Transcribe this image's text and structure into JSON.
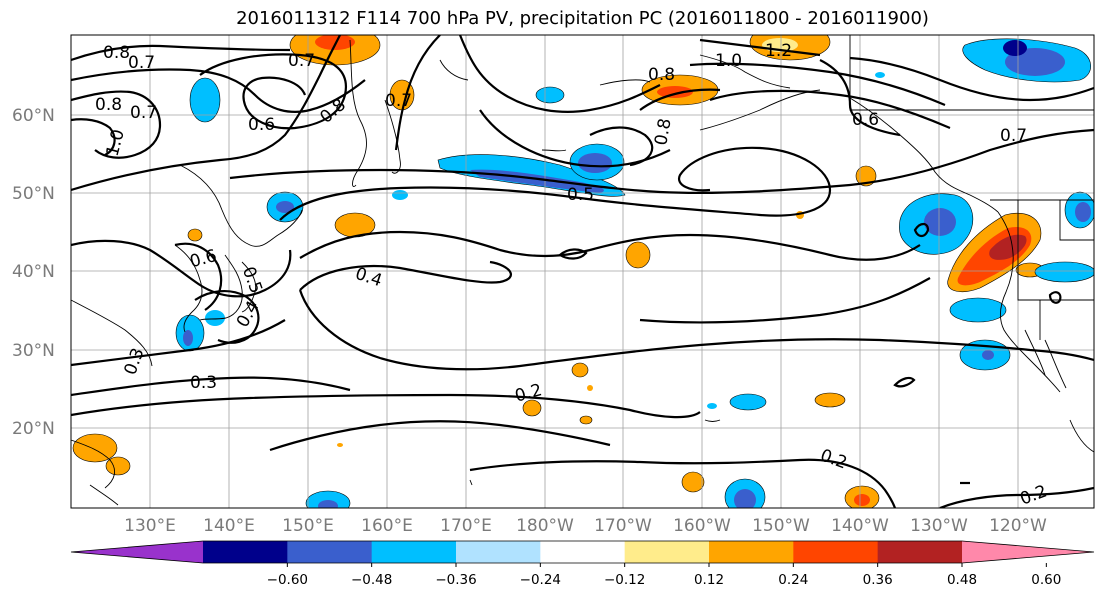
{
  "title": "2016011312 F114 700 hPa PV, precipitation PC (2016011800 - 2016011900)",
  "lat_labels": [
    "60°N",
    "50°N",
    "40°N",
    "30°N",
    "20°N"
  ],
  "lon_labels": [
    "130°E",
    "140°E",
    "150°E",
    "160°E",
    "170°E",
    "180°W",
    "170°W",
    "160°W",
    "150°W",
    "140°W",
    "130°W",
    "120°W"
  ],
  "contour_labels": [
    "0.8",
    "0.7",
    "0.8",
    "0.7",
    "1.0",
    "0.7",
    "0.6",
    "0.8",
    "0.7",
    "0.8",
    "1.0",
    "1.2",
    "0.6",
    "0.8",
    "0.7",
    "0.5",
    "0.4",
    "0.3",
    "0.3",
    "0.2",
    "0.2",
    "0.2",
    "0.6",
    "0.5",
    "0.4"
  ],
  "colorbar": {
    "tick_labels": [
      "−0.60",
      "−0.48",
      "−0.36",
      "−0.24",
      "−0.12",
      "0.12",
      "0.24",
      "0.36",
      "0.48",
      "0.60"
    ],
    "colors": [
      "#9932cc",
      "#00008b",
      "#3a5fcd",
      "#00bfff",
      "#b0e2ff",
      "#ffffff",
      "#ffec8b",
      "#ffa500",
      "#ff4500",
      "#b22222",
      "#ff88aa"
    ]
  }
}
